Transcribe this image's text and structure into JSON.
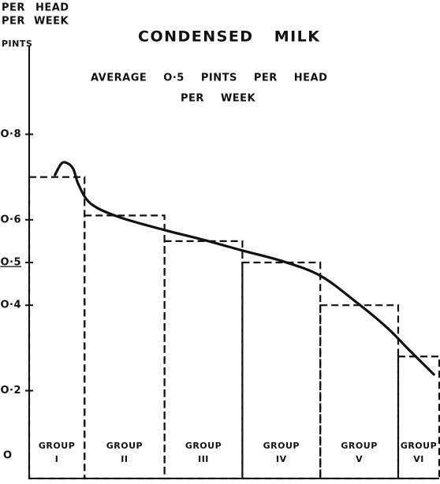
{
  "chart_data": {
    "type": "histogram",
    "title": "CONDENSED MILK",
    "subtitle": [
      "AVERAGE O·5 PINTS PER HEAD",
      "PER WEEK"
    ],
    "ylabel": [
      "PER HEAD",
      "PER WEEK",
      "PINTS"
    ],
    "categories": [
      [
        "GROUP",
        "I"
      ],
      [
        "GROUP",
        "II"
      ],
      [
        "GROUP",
        "III"
      ],
      [
        "GROUP",
        "IV"
      ],
      [
        "GROUP",
        "V"
      ],
      [
        "GROUP",
        "VI"
      ]
    ],
    "bins": [
      0,
      13.5,
      33,
      52,
      71,
      90,
      100
    ],
    "values": [
      0.7,
      0.61,
      0.55,
      0.5,
      0.4,
      0.28
    ],
    "curve": {
      "x": [
        6.3,
        7.9,
        9.4,
        10.8,
        12.1,
        15,
        21.7,
        33,
        42.9,
        52,
        62.1,
        71,
        79.4,
        87.1,
        92.9,
        98.7
      ],
      "values": [
        0.705,
        0.732,
        0.732,
        0.718,
        0.681,
        0.638,
        0.607,
        0.576,
        0.552,
        0.528,
        0.502,
        0.469,
        0.41,
        0.349,
        0.293,
        0.238
      ]
    },
    "color": "#111111",
    "xlim": [
      0,
      100
    ],
    "ylim": [
      0,
      0.9
    ],
    "yticks": [
      {
        "value": 0,
        "label": "O"
      },
      {
        "value": 0.2,
        "label": "O·2"
      },
      {
        "value": 0.4,
        "label": "O·4"
      },
      {
        "value": 0.5,
        "label": "O·5"
      },
      {
        "value": 0.6,
        "label": "O·6"
      },
      {
        "value": 0.8,
        "label": "O·8"
      }
    ]
  }
}
